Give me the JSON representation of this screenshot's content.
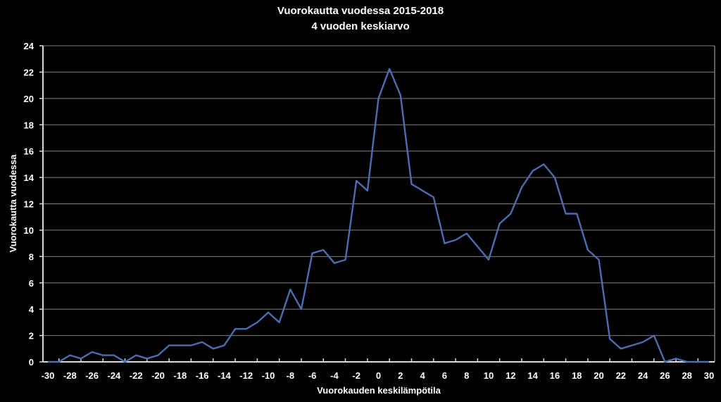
{
  "chart_data": {
    "type": "line",
    "title": "Vuorokautta vuodessa 2015-2018",
    "subtitle": "4 vuoden keskiarvo",
    "xlabel": "Vuorokauden keskilämpötila",
    "ylabel": "Vuorokautta vuodessa",
    "ylim": [
      0,
      24
    ],
    "yticks": [
      0,
      2,
      4,
      6,
      8,
      10,
      12,
      14,
      16,
      18,
      20,
      22,
      24
    ],
    "xlim": [
      -30,
      30
    ],
    "xticks": [
      -30,
      -28,
      -26,
      -24,
      -22,
      -20,
      -18,
      -16,
      -14,
      -12,
      -10,
      -8,
      -6,
      -4,
      -2,
      0,
      2,
      4,
      6,
      8,
      10,
      12,
      14,
      16,
      18,
      20,
      22,
      24,
      26,
      28,
      30
    ],
    "grid": "horizontal",
    "legend": "none",
    "series": [
      {
        "name": "Vuorokautta vuodessa",
        "color": "#4a6db4",
        "x": [
          -30,
          -29,
          -28,
          -27,
          -26,
          -25,
          -24,
          -23,
          -22,
          -21,
          -20,
          -19,
          -18,
          -17,
          -16,
          -15,
          -14,
          -13,
          -12,
          -11,
          -10,
          -9,
          -8,
          -7,
          -6,
          -5,
          -4,
          -3,
          -2,
          -1,
          0,
          1,
          2,
          3,
          4,
          5,
          6,
          7,
          8,
          9,
          10,
          11,
          12,
          13,
          14,
          15,
          16,
          17,
          18,
          19,
          20,
          21,
          22,
          23,
          24,
          25,
          26,
          27,
          28,
          29,
          30
        ],
        "values": [
          0,
          0,
          0.5,
          0.25,
          0.75,
          0.5,
          0.5,
          0,
          0.5,
          0.25,
          0.5,
          1.25,
          1.25,
          1.25,
          1.5,
          1,
          1.25,
          2.5,
          2.5,
          3,
          3.75,
          3,
          5.5,
          4,
          8.25,
          8.5,
          7.5,
          7.75,
          13.75,
          13,
          20,
          22.25,
          20.25,
          13.5,
          13,
          12.5,
          9,
          9.25,
          9.75,
          8.75,
          7.75,
          10.5,
          11.25,
          13.25,
          14.5,
          15,
          14,
          11.25,
          11.25,
          8.5,
          7.75,
          1.75,
          1,
          1.25,
          1.5,
          2,
          0,
          0.25,
          0,
          0,
          0
        ]
      }
    ]
  },
  "colors": {
    "background": "#000000",
    "text": "#ffffff",
    "gridline": "#7f7f7f",
    "axis": "#d9d9d9",
    "line": "#4a6db4"
  }
}
